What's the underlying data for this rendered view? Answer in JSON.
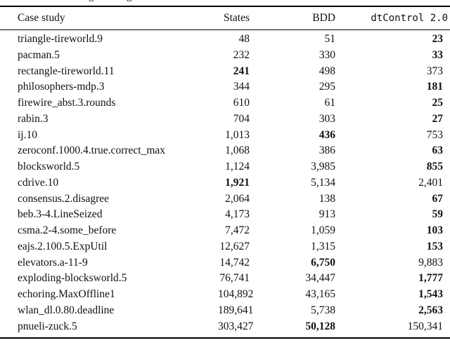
{
  "caption_fragment": {
    "piece1": "g",
    "piece2": "g"
  },
  "table": {
    "headers": {
      "case_study": "Case study",
      "states": "States",
      "bdd": "BDD",
      "dtcontrol": "dtControl 2.0"
    },
    "rows": [
      {
        "name": "triangle-tireworld.9",
        "states": "48",
        "bdd": "51",
        "dtcontrol": "23",
        "bold": "dtcontrol"
      },
      {
        "name": "pacman.5",
        "states": "232",
        "bdd": "330",
        "dtcontrol": "33",
        "bold": "dtcontrol"
      },
      {
        "name": "rectangle-tireworld.11",
        "states": "241",
        "bdd": "498",
        "dtcontrol": "373",
        "bold": "states"
      },
      {
        "name": "philosophers-mdp.3",
        "states": "344",
        "bdd": "295",
        "dtcontrol": "181",
        "bold": "dtcontrol"
      },
      {
        "name": "firewire_abst.3.rounds",
        "states": "610",
        "bdd": "61",
        "dtcontrol": "25",
        "bold": "dtcontrol"
      },
      {
        "name": "rabin.3",
        "states": "704",
        "bdd": "303",
        "dtcontrol": "27",
        "bold": "dtcontrol"
      },
      {
        "name": "ij.10",
        "states": "1,013",
        "bdd": "436",
        "dtcontrol": "753",
        "bold": "bdd"
      },
      {
        "name": "zeroconf.1000.4.true.correct_max",
        "states": "1,068",
        "bdd": "386",
        "dtcontrol": "63",
        "bold": "dtcontrol"
      },
      {
        "name": "blocksworld.5",
        "states": "1,124",
        "bdd": "3,985",
        "dtcontrol": "855",
        "bold": "dtcontrol"
      },
      {
        "name": "cdrive.10",
        "states": "1,921",
        "bdd": "5,134",
        "dtcontrol": "2,401",
        "bold": "states"
      },
      {
        "name": "consensus.2.disagree",
        "states": "2,064",
        "bdd": "138",
        "dtcontrol": "67",
        "bold": "dtcontrol"
      },
      {
        "name": "beb.3-4.LineSeized",
        "states": "4,173",
        "bdd": "913",
        "dtcontrol": "59",
        "bold": "dtcontrol"
      },
      {
        "name": "csma.2-4.some_before",
        "states": "7,472",
        "bdd": "1,059",
        "dtcontrol": "103",
        "bold": "dtcontrol"
      },
      {
        "name": "eajs.2.100.5.ExpUtil",
        "states": "12,627",
        "bdd": "1,315",
        "dtcontrol": "153",
        "bold": "dtcontrol"
      },
      {
        "name": "elevators.a-11-9",
        "states": "14,742",
        "bdd": "6,750",
        "dtcontrol": "9,883",
        "bold": "bdd"
      },
      {
        "name": "exploding-blocksworld.5",
        "states": "76,741",
        "bdd": "34,447",
        "dtcontrol": "1,777",
        "bold": "dtcontrol"
      },
      {
        "name": "echoring.MaxOffline1",
        "states": "104,892",
        "bdd": "43,165",
        "dtcontrol": "1,543",
        "bold": "dtcontrol"
      },
      {
        "name": "wlan_dl.0.80.deadline",
        "states": "189,641",
        "bdd": "5,738",
        "dtcontrol": "2,563",
        "bold": "dtcontrol"
      },
      {
        "name": "pnueli-zuck.5",
        "states": "303,427",
        "bdd": "50,128",
        "dtcontrol": "150,341",
        "bold": "bdd"
      }
    ]
  }
}
